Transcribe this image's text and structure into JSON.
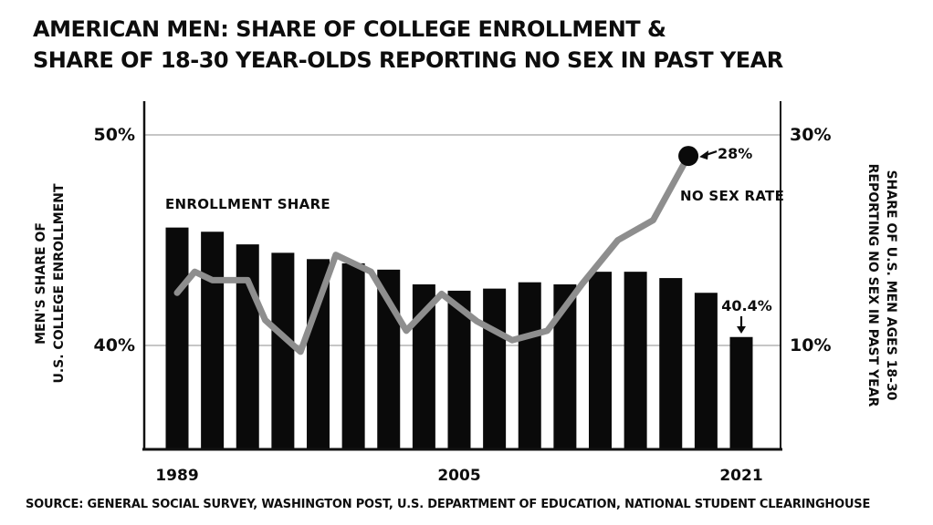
{
  "title": {
    "line1": "AMERICAN MEN: SHARE OF COLLEGE ENROLLMENT &",
    "line2": "SHARE OF 18-30 YEAR-OLDS REPORTING NO SEX IN PAST YEAR"
  },
  "source": "SOURCE: GENERAL SOCIAL SURVEY, WASHINGTON POST, U.S. DEPARTMENT OF EDUCATION, NATIONAL STUDENT CLEARINGHOUSE",
  "annotations": {
    "bar_series_label": "ENROLLMENT SHARE",
    "line_series_label": "NO SEX RATE",
    "line_end_value_label": "28%",
    "last_bar_value_label": "40.4%"
  },
  "chart_data": {
    "type": "bar+line combo, dual y-axes, hand-drawn (xkcd) style",
    "bar_series": {
      "name": "ENROLLMENT SHARE",
      "axis": "left",
      "years": [
        1989,
        1991,
        1993,
        1995,
        1997,
        1999,
        2001,
        2003,
        2005,
        2007,
        2009,
        2011,
        2013,
        2015,
        2017,
        2019,
        2021
      ],
      "values": [
        45.6,
        45.4,
        44.8,
        44.4,
        44.1,
        43.9,
        43.6,
        42.9,
        42.6,
        42.7,
        43.0,
        42.9,
        43.5,
        43.5,
        43.2,
        42.5,
        40.4
      ]
    },
    "line_series": {
      "name": "NO SEX RATE",
      "axis": "right",
      "years": [
        1989,
        1990,
        1991,
        1993,
        1994,
        1996,
        1998,
        2000,
        2002,
        2004,
        2006,
        2008,
        2010,
        2012,
        2014,
        2016,
        2018
      ],
      "values": [
        15,
        17,
        16.2,
        16.2,
        12.4,
        9.4,
        18.6,
        17,
        11.4,
        14.9,
        12.3,
        10.5,
        11.4,
        15.9,
        20,
        21.9,
        28
      ],
      "end_dot": {
        "year": 2018,
        "value": 28,
        "label": "28%"
      }
    },
    "left_axis": {
      "title": [
        "MEN'S SHARE OF",
        "U.S. COLLEGE ENROLLMENT"
      ],
      "ticks": [
        {
          "value": 50,
          "label": "50%"
        },
        {
          "value": 40,
          "label": "40%"
        }
      ],
      "range": [
        35,
        51.5
      ]
    },
    "right_axis": {
      "title": [
        "SHARE OF U.S. MEN AGES 18-30",
        "REPORTING NO SEX IN PAST YEAR"
      ],
      "ticks": [
        {
          "value": 30,
          "label": "30%"
        },
        {
          "value": 10,
          "label": "10%"
        }
      ],
      "range": [
        0,
        33
      ]
    },
    "x_axis": {
      "year_range": [
        1989,
        2021
      ],
      "tick_labels": [
        {
          "year": 1989,
          "label": "1989"
        },
        {
          "year": 2005,
          "label": "2005"
        },
        {
          "year": 2021,
          "label": "2021"
        }
      ]
    },
    "grid": "horizontal gridlines at 50%/30% and 40%/10%, no top spine",
    "legend": "inline text annotations instead of legend box"
  },
  "colors": {
    "background": "#ffffff",
    "bar": "#0a0a0a",
    "line": "#8e8e8e",
    "dot": "#0a0a0a",
    "grid": "#b3b3b3",
    "axis": "#111111",
    "text": "#0d0d0d"
  }
}
